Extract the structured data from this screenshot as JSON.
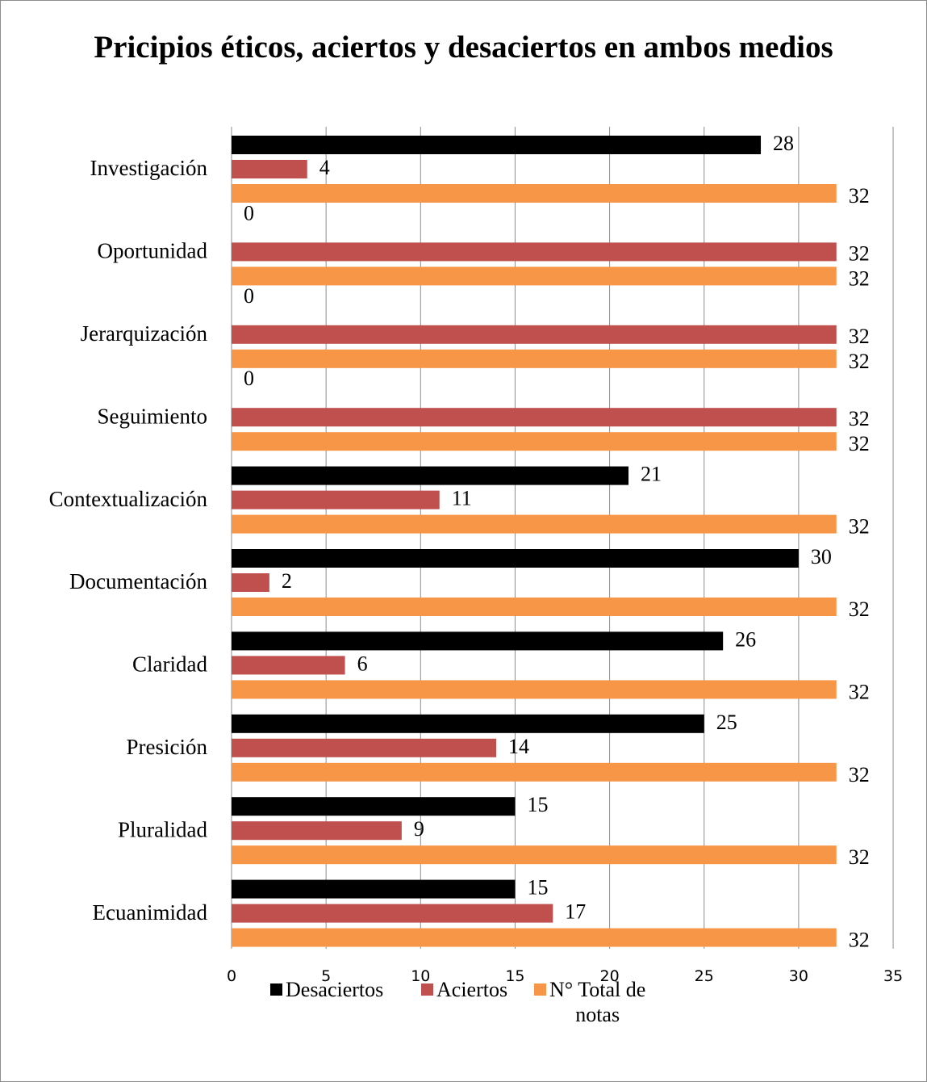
{
  "chart_data": {
    "type": "bar",
    "orientation": "horizontal",
    "title": "Pricipios éticos, aciertos y desaciertos en ambos medios",
    "categories": [
      "Investigación",
      "Oportunidad",
      "Jerarquización",
      "Seguimiento",
      "Contextualización",
      "Documentación",
      "Claridad",
      "Presición",
      "Pluralidad",
      "Ecuanimidad"
    ],
    "series": [
      {
        "name": "Desaciertos",
        "color": "#000000",
        "values": [
          28,
          0,
          0,
          0,
          21,
          30,
          26,
          25,
          15,
          15
        ]
      },
      {
        "name": "Aciertos",
        "color": "#C0504D",
        "values": [
          4,
          32,
          32,
          32,
          11,
          2,
          6,
          14,
          9,
          17
        ]
      },
      {
        "name": "N° Total de notas",
        "color": "#F79646",
        "values": [
          32,
          32,
          32,
          32,
          32,
          32,
          32,
          32,
          32,
          32
        ]
      }
    ],
    "xlim": [
      0,
      35
    ],
    "xticks": [
      "0",
      "5",
      "10",
      "15",
      "20",
      "25",
      "30",
      "35"
    ],
    "grid": true,
    "legend": "bottom",
    "data_labels": true
  },
  "legend_lines": [
    [
      "Desaciertos"
    ],
    [
      "Aciertos"
    ],
    [
      "N° Total de",
      "notas"
    ]
  ]
}
